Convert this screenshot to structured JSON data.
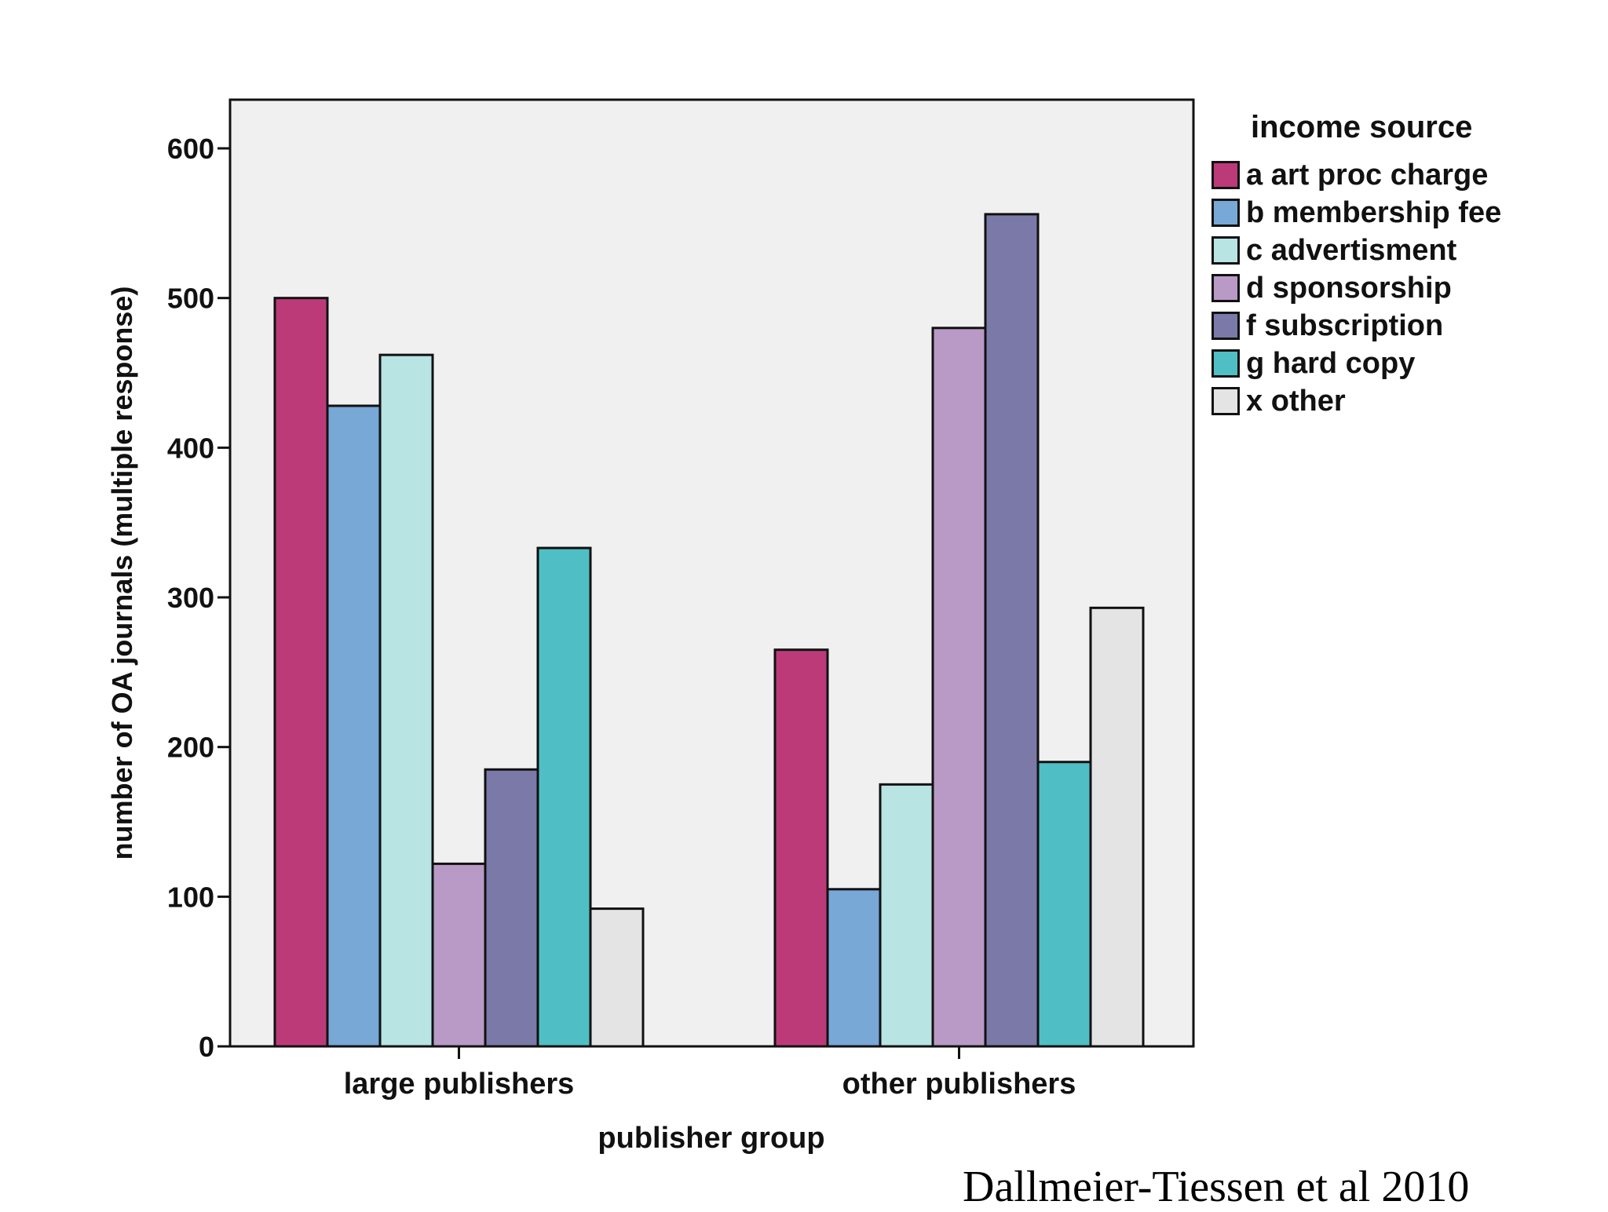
{
  "chart_data": {
    "type": "bar",
    "title": "",
    "xlabel": "publisher group",
    "ylabel": "number of OA journals (multiple response)",
    "ylim": [
      0,
      600
    ],
    "yticks": [
      0,
      100,
      200,
      300,
      400,
      500,
      600
    ],
    "categories": [
      "large publishers",
      "other publishers"
    ],
    "grid": false,
    "legend_title": "income source",
    "legend_position": "right",
    "series": [
      {
        "name": "a art proc charge",
        "color": "#bd3a79",
        "values": [
          500,
          265
        ]
      },
      {
        "name": "b membership fee",
        "color": "#77a8d6",
        "values": [
          428,
          105
        ]
      },
      {
        "name": "c advertisment",
        "color": "#b8e4e3",
        "values": [
          462,
          175
        ]
      },
      {
        "name": "d sponsorship",
        "color": "#b99ac6",
        "values": [
          122,
          480
        ]
      },
      {
        "name": "f subscription",
        "color": "#7a79a8",
        "values": [
          185,
          556
        ]
      },
      {
        "name": "g hard copy",
        "color": "#4fbfc5",
        "values": [
          333,
          190
        ]
      },
      {
        "name": "x other",
        "color": "#e4e4e4",
        "values": [
          92,
          293
        ]
      }
    ]
  },
  "citation": "Dallmeier-Tiessen et al 2010"
}
